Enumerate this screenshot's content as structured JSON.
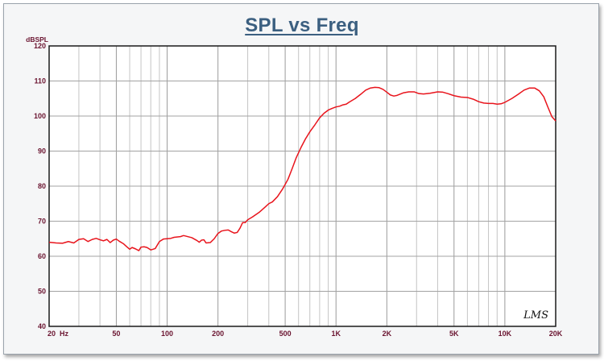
{
  "title": "SPL vs Freq",
  "chart_data": {
    "type": "line",
    "title": "SPL vs Freq",
    "xlabel": "",
    "ylabel": "dBSPL",
    "x_scale": "log",
    "xlim": [
      20,
      20000
    ],
    "ylim": [
      40,
      120
    ],
    "grid": true,
    "watermark": "LMS",
    "x_ticks": [
      {
        "value": 20,
        "label": "20  Hz"
      },
      {
        "value": 50,
        "label": "50"
      },
      {
        "value": 100,
        "label": "100"
      },
      {
        "value": 200,
        "label": "200"
      },
      {
        "value": 500,
        "label": "500"
      },
      {
        "value": 1000,
        "label": "1K"
      },
      {
        "value": 2000,
        "label": "2K"
      },
      {
        "value": 5000,
        "label": "5K"
      },
      {
        "value": 10000,
        "label": "10K"
      },
      {
        "value": 20000,
        "label": "20K"
      }
    ],
    "y_ticks": [
      40,
      50,
      60,
      70,
      80,
      90,
      100,
      110,
      120
    ],
    "series": [
      {
        "color": "#e8141c",
        "points": [
          [
            20,
            64.0
          ],
          [
            22,
            63.8
          ],
          [
            24,
            63.7
          ],
          [
            26,
            64.2
          ],
          [
            28,
            63.8
          ],
          [
            30,
            64.8
          ],
          [
            32,
            65.0
          ],
          [
            34,
            64.2
          ],
          [
            36,
            64.8
          ],
          [
            38,
            65.1
          ],
          [
            40,
            64.7
          ],
          [
            42,
            64.4
          ],
          [
            44,
            64.8
          ],
          [
            46,
            63.9
          ],
          [
            48,
            64.6
          ],
          [
            50,
            64.9
          ],
          [
            52,
            64.3
          ],
          [
            55,
            63.6
          ],
          [
            58,
            62.6
          ],
          [
            60,
            62.0
          ],
          [
            62,
            62.5
          ],
          [
            65,
            62.1
          ],
          [
            68,
            61.6
          ],
          [
            70,
            62.6
          ],
          [
            73,
            62.7
          ],
          [
            76,
            62.5
          ],
          [
            80,
            61.8
          ],
          [
            85,
            62.2
          ],
          [
            90,
            64.2
          ],
          [
            95,
            64.9
          ],
          [
            100,
            65.0
          ],
          [
            105,
            65.1
          ],
          [
            110,
            65.4
          ],
          [
            120,
            65.6
          ],
          [
            125,
            65.9
          ],
          [
            130,
            65.7
          ],
          [
            140,
            65.3
          ],
          [
            150,
            64.5
          ],
          [
            155,
            64.0
          ],
          [
            160,
            64.6
          ],
          [
            165,
            64.7
          ],
          [
            170,
            63.8
          ],
          [
            180,
            63.9
          ],
          [
            190,
            65.0
          ],
          [
            200,
            66.5
          ],
          [
            210,
            67.2
          ],
          [
            220,
            67.4
          ],
          [
            230,
            67.5
          ],
          [
            240,
            67.0
          ],
          [
            250,
            66.6
          ],
          [
            260,
            66.8
          ],
          [
            270,
            68.0
          ],
          [
            280,
            69.6
          ],
          [
            290,
            69.6
          ],
          [
            300,
            70.4
          ],
          [
            320,
            71.2
          ],
          [
            350,
            72.5
          ],
          [
            380,
            74.0
          ],
          [
            400,
            75.0
          ],
          [
            420,
            75.5
          ],
          [
            450,
            77.0
          ],
          [
            480,
            79.0
          ],
          [
            500,
            80.5
          ],
          [
            520,
            82.0
          ],
          [
            550,
            85.0
          ],
          [
            580,
            88.0
          ],
          [
            620,
            91.0
          ],
          [
            660,
            93.5
          ],
          [
            700,
            95.5
          ],
          [
            750,
            97.5
          ],
          [
            800,
            99.5
          ],
          [
            850,
            100.8
          ],
          [
            900,
            101.7
          ],
          [
            950,
            102.2
          ],
          [
            1000,
            102.6
          ],
          [
            1050,
            102.8
          ],
          [
            1100,
            103.2
          ],
          [
            1150,
            103.4
          ],
          [
            1200,
            104.0
          ],
          [
            1300,
            105.0
          ],
          [
            1400,
            106.2
          ],
          [
            1500,
            107.4
          ],
          [
            1600,
            108.0
          ],
          [
            1700,
            108.2
          ],
          [
            1800,
            108.1
          ],
          [
            1900,
            107.6
          ],
          [
            2000,
            106.8
          ],
          [
            2100,
            106.0
          ],
          [
            2200,
            105.7
          ],
          [
            2300,
            105.9
          ],
          [
            2500,
            106.6
          ],
          [
            2700,
            106.9
          ],
          [
            2900,
            106.9
          ],
          [
            3100,
            106.4
          ],
          [
            3300,
            106.3
          ],
          [
            3600,
            106.5
          ],
          [
            4000,
            106.9
          ],
          [
            4300,
            106.8
          ],
          [
            4600,
            106.4
          ],
          [
            5000,
            105.8
          ],
          [
            5500,
            105.4
          ],
          [
            6000,
            105.3
          ],
          [
            6500,
            104.8
          ],
          [
            7000,
            104.1
          ],
          [
            7500,
            103.7
          ],
          [
            8000,
            103.6
          ],
          [
            8500,
            103.6
          ],
          [
            9000,
            103.4
          ],
          [
            9500,
            103.5
          ],
          [
            10000,
            103.9
          ],
          [
            11000,
            105.0
          ],
          [
            12000,
            106.2
          ],
          [
            13000,
            107.4
          ],
          [
            14000,
            108.0
          ],
          [
            15000,
            108.0
          ],
          [
            16000,
            107.2
          ],
          [
            17000,
            105.5
          ],
          [
            18000,
            102.5
          ],
          [
            19000,
            99.8
          ],
          [
            19500,
            99.2
          ],
          [
            20000,
            98.6
          ]
        ]
      }
    ]
  }
}
